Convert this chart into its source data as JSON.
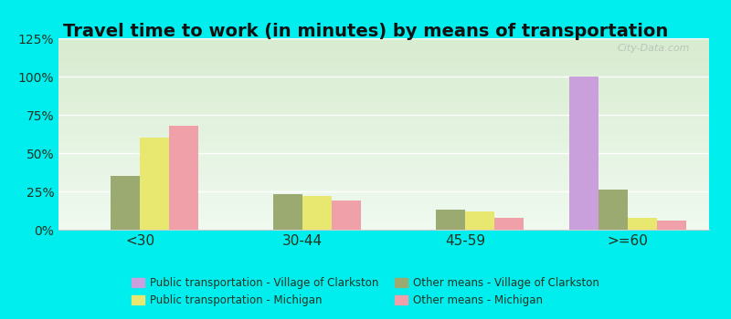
{
  "title": "Travel time to work (in minutes) by means of transportation",
  "categories": [
    "<30",
    "30-44",
    "45-59",
    ">=60"
  ],
  "series": {
    "pub_trans_clarkston": [
      0,
      0,
      0,
      100
    ],
    "other_means_clarkston": [
      35,
      23,
      13,
      26
    ],
    "pub_trans_michigan": [
      60,
      22,
      12,
      8
    ],
    "other_means_michigan": [
      68,
      19,
      8,
      6
    ]
  },
  "colors": {
    "pub_trans_clarkston": "#c9a0dc",
    "other_means_clarkston": "#9aaa70",
    "pub_trans_michigan": "#e8e870",
    "other_means_michigan": "#f0a0a8"
  },
  "legend_labels": {
    "pub_trans_clarkston": "Public transportation - Village of Clarkston",
    "other_means_clarkston": "Other means - Village of Clarkston",
    "pub_trans_michigan": "Public transportation - Michigan",
    "other_means_michigan": "Other means - Michigan"
  },
  "ylim": [
    0,
    125
  ],
  "yticks": [
    0,
    25,
    50,
    75,
    100,
    125
  ],
  "ytick_labels": [
    "0%",
    "25%",
    "50%",
    "75%",
    "100%",
    "125%"
  ],
  "background_color": "#00eeee",
  "plot_bg_top": "#d8ecd0",
  "plot_bg_bottom": "#f0faf0",
  "bar_width": 0.18,
  "title_fontsize": 14,
  "tick_label_color": "#223322",
  "watermark": "City-Data.com",
  "grid_color": "#ffffff",
  "xlim": [
    -0.5,
    3.5
  ]
}
